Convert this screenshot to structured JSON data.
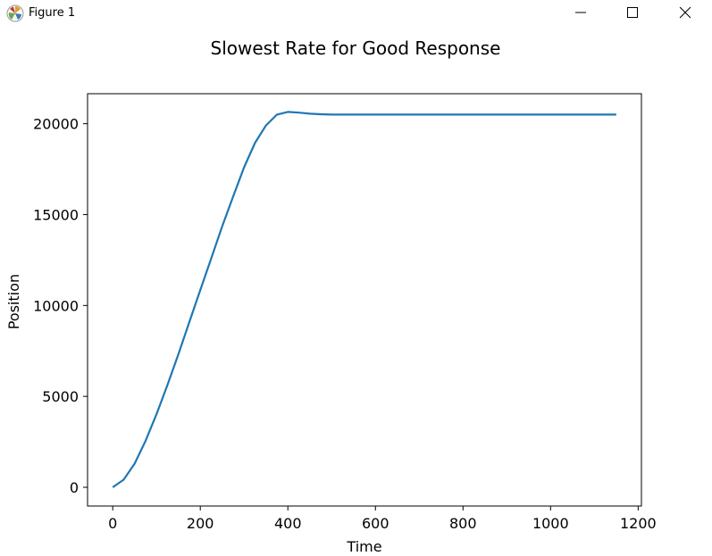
{
  "window": {
    "title": "Figure 1",
    "icon": "matplotlib-logo-icon",
    "buttons": [
      "minimize-icon",
      "maximize-icon",
      "close-icon"
    ]
  },
  "chart_data": {
    "type": "line",
    "title": "Slowest Rate for Good Response",
    "xlabel": "Time",
    "ylabel": "Position",
    "xlim": [
      -57.5,
      1207.5
    ],
    "ylim": [
      -1030,
      21650
    ],
    "xticks": [
      0,
      200,
      400,
      600,
      800,
      1000,
      1200
    ],
    "yticks": [
      0,
      5000,
      10000,
      15000,
      20000
    ],
    "grid": false,
    "line_color": "#1f77b4",
    "series": [
      {
        "x": [
          0,
          25,
          50,
          75,
          100,
          125,
          150,
          175,
          200,
          225,
          250,
          275,
          300,
          325,
          350,
          375,
          400,
          425,
          450,
          475,
          500,
          525,
          550,
          575,
          600,
          625,
          650,
          675,
          700,
          725,
          750,
          775,
          800,
          825,
          850,
          875,
          900,
          925,
          950,
          975,
          1000,
          1025,
          1050,
          1075,
          1100,
          1125,
          1150
        ],
        "y": [
          0,
          420,
          1300,
          2550,
          4020,
          5620,
          7320,
          9100,
          10850,
          12600,
          14350,
          16000,
          17600,
          18950,
          19900,
          20500,
          20650,
          20610,
          20550,
          20520,
          20500,
          20500,
          20500,
          20500,
          20500,
          20500,
          20500,
          20500,
          20500,
          20500,
          20500,
          20500,
          20500,
          20500,
          20500,
          20500,
          20500,
          20500,
          20500,
          20500,
          20500,
          20500,
          20500,
          20500,
          20500,
          20500,
          20500
        ]
      }
    ]
  }
}
